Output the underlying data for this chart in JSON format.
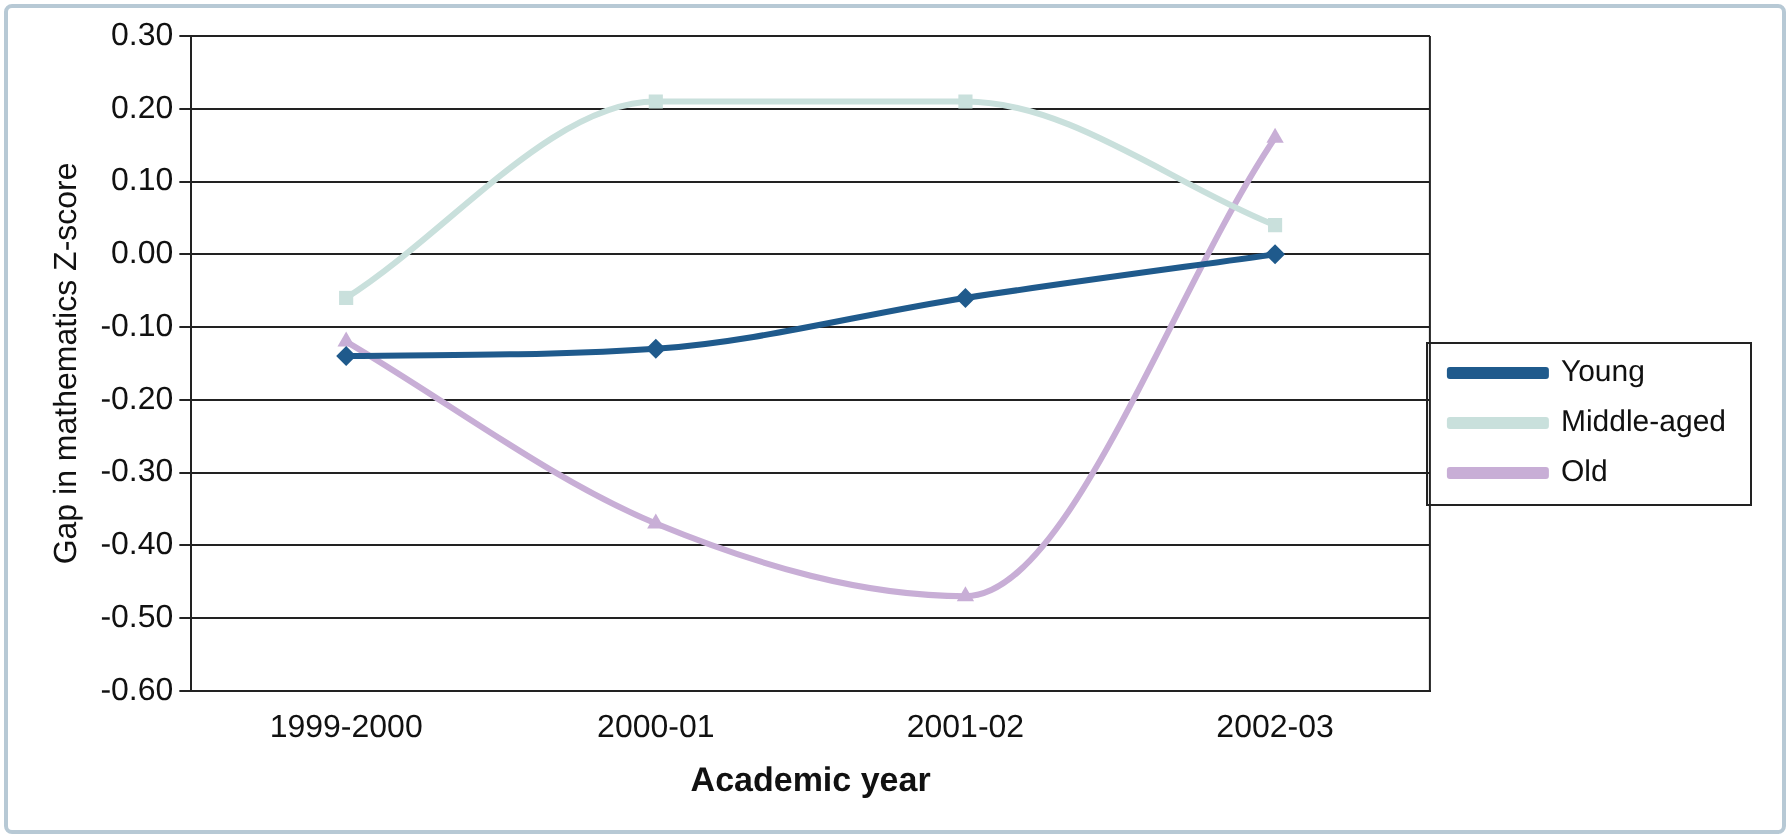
{
  "chart_data": {
    "type": "line",
    "xlabel": "Academic year",
    "ylabel": "Gap in mathematics Z-score",
    "categories": [
      "1999-2000",
      "2000-01",
      "2001-02",
      "2002-03"
    ],
    "series": [
      {
        "name": "Young",
        "color": "#1f5a8c",
        "marker": "diamond",
        "values": [
          -0.14,
          -0.13,
          -0.06,
          0.0
        ]
      },
      {
        "name": "Middle-aged",
        "color": "#c9e0dc",
        "marker": "square",
        "values": [
          -0.06,
          0.21,
          0.21,
          0.04
        ]
      },
      {
        "name": "Old",
        "color": "#c8aed6",
        "marker": "triangle",
        "values": [
          -0.12,
          -0.37,
          -0.47,
          0.16
        ]
      }
    ],
    "ylim": [
      -0.6,
      0.3
    ],
    "yticks": [
      {
        "value": -0.6,
        "label": "-0.60"
      },
      {
        "value": -0.5,
        "label": "-0.50"
      },
      {
        "value": -0.4,
        "label": "-0.40"
      },
      {
        "value": -0.3,
        "label": "-0.30"
      },
      {
        "value": -0.2,
        "label": "-0.20"
      },
      {
        "value": -0.1,
        "label": "-0.10"
      },
      {
        "value": 0,
        "label": "0.00"
      },
      {
        "value": 0.1,
        "label": "0.10"
      },
      {
        "value": 0.2,
        "label": "0.20"
      },
      {
        "value": 0.3,
        "label": "0.30"
      }
    ],
    "grid": "y",
    "legend": "right",
    "line_style": "solid"
  }
}
